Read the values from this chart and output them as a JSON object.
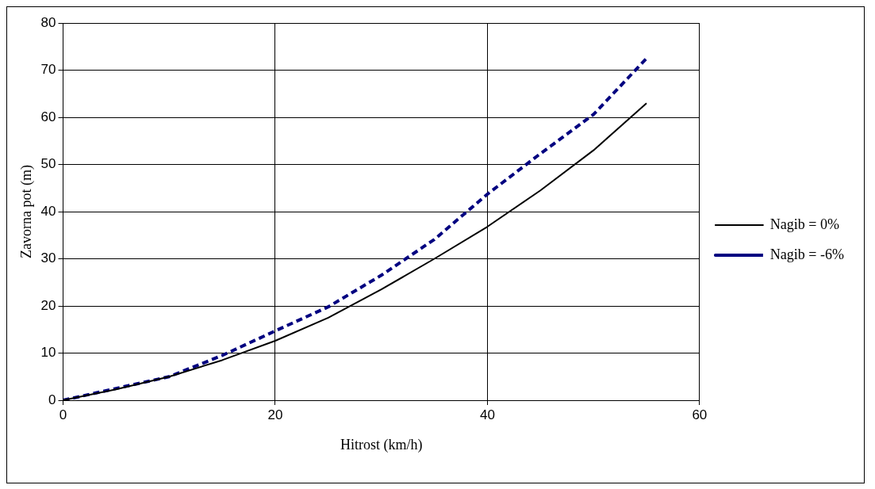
{
  "chart_data": {
    "type": "line",
    "xlabel": "Hitrost (km/h)",
    "ylabel": "Zavorna pot (m)",
    "x": [
      0,
      5,
      10,
      15,
      20,
      25,
      30,
      35,
      40,
      45,
      50,
      55
    ],
    "series": [
      {
        "name": "Nagib = 0%",
        "color": "#000000",
        "line_style": "solid",
        "values": [
          0,
          2.3,
          5,
          8.5,
          12.6,
          17.5,
          23.5,
          30,
          36.8,
          44.5,
          53,
          63
        ]
      },
      {
        "name": "Nagib = -6%",
        "color": "#000080",
        "line_style": "dashed",
        "values": [
          0,
          2.5,
          5,
          9.5,
          14.7,
          19.8,
          26.5,
          34.1,
          43.7,
          52.3,
          60.6,
          72.5
        ]
      }
    ],
    "xlim": [
      0,
      60
    ],
    "xticks": [
      0,
      20,
      40,
      60
    ],
    "ylim": [
      0,
      80
    ],
    "yticks": [
      0,
      10,
      20,
      30,
      40,
      50,
      60,
      70,
      80
    ],
    "grid": true,
    "legend": "right",
    "marker": "none"
  }
}
